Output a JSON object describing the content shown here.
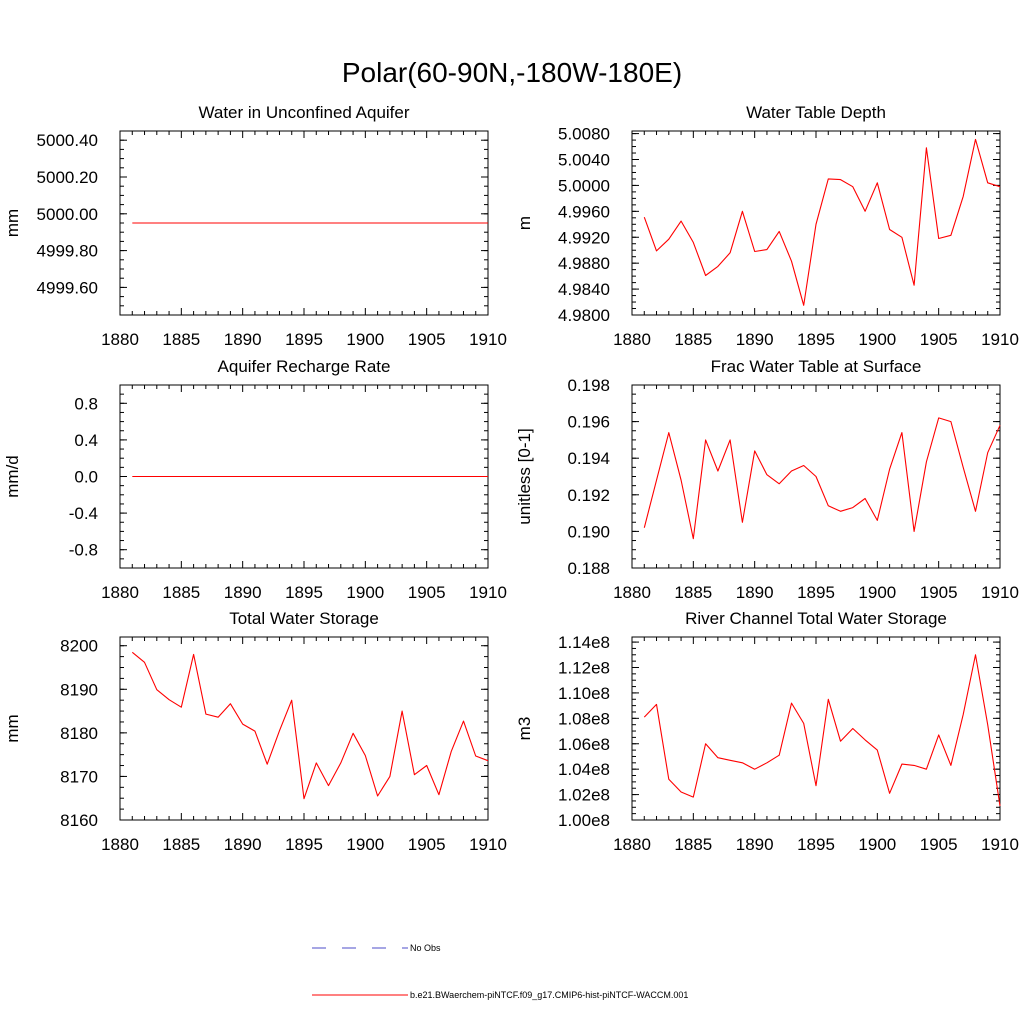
{
  "figure": {
    "title": "Polar(60-90N,-180W-180E)",
    "legend": [
      {
        "label": "No Obs",
        "color": "#4c4cc8",
        "style": "dashed"
      },
      {
        "label": "b.e21.BWaerchem-piNTCF.f09_g17.CMIP6-hist-piNTCF-WACCM.001",
        "color": "#ff0000",
        "style": "solid"
      }
    ]
  },
  "chart_data": [
    {
      "type": "line",
      "title": "Water in Unconfined Aquifer",
      "ylabel": "mm",
      "xlim": [
        1880,
        1910
      ],
      "ylim": [
        4999.45,
        5000.45
      ],
      "xticks": [
        1880,
        1885,
        1890,
        1895,
        1900,
        1905,
        1910
      ],
      "yticks": [
        4999.6,
        4999.8,
        5000.0,
        5000.2,
        5000.4
      ],
      "ytick_labels": [
        "4999.60",
        "4999.80",
        "5000.00",
        "5000.20",
        "5000.40"
      ],
      "series": [
        {
          "color": "#ff0000",
          "x": [
            1881,
            1882,
            1883,
            1884,
            1885,
            1886,
            1887,
            1888,
            1889,
            1890,
            1891,
            1892,
            1893,
            1894,
            1895,
            1896,
            1897,
            1898,
            1899,
            1900,
            1901,
            1902,
            1903,
            1904,
            1905,
            1906,
            1907,
            1908,
            1909,
            1910
          ],
          "y": [
            4999.95,
            4999.95,
            4999.95,
            4999.95,
            4999.95,
            4999.95,
            4999.95,
            4999.95,
            4999.95,
            4999.95,
            4999.95,
            4999.95,
            4999.95,
            4999.95,
            4999.95,
            4999.95,
            4999.95,
            4999.95,
            4999.95,
            4999.95,
            4999.95,
            4999.95,
            4999.95,
            4999.95,
            4999.95,
            4999.95,
            4999.95,
            4999.95,
            4999.95,
            4999.95
          ]
        }
      ]
    },
    {
      "type": "line",
      "title": "Water Table Depth",
      "ylabel": "m",
      "xlim": [
        1880,
        1910
      ],
      "ylim": [
        4.98,
        5.0084
      ],
      "xticks": [
        1880,
        1885,
        1890,
        1895,
        1900,
        1905,
        1910
      ],
      "yticks": [
        4.98,
        4.984,
        4.988,
        4.992,
        4.996,
        5.0,
        5.004,
        5.008
      ],
      "ytick_labels": [
        "4.9800",
        "4.9840",
        "4.9880",
        "4.9920",
        "4.9960",
        "5.0000",
        "5.0040",
        "5.0080"
      ],
      "series": [
        {
          "color": "#ff0000",
          "x": [
            1881,
            1882,
            1883,
            1884,
            1885,
            1886,
            1887,
            1888,
            1889,
            1890,
            1891,
            1892,
            1893,
            1894,
            1895,
            1896,
            1897,
            1898,
            1899,
            1900,
            1901,
            1902,
            1903,
            1904,
            1905,
            1906,
            1907,
            1908,
            1909,
            1910
          ],
          "y": [
            4.9951,
            4.9899,
            4.9917,
            4.9945,
            4.9912,
            4.9861,
            4.9875,
            4.9896,
            4.996,
            4.9898,
            4.9901,
            4.9929,
            4.9883,
            4.9815,
            4.994,
            5.001,
            5.0009,
            4.9998,
            4.996,
            5.0004,
            4.9932,
            4.992,
            4.9846,
            5.0058,
            4.9918,
            4.9923,
            4.9983,
            5.0071,
            5.0004,
            4.9998
          ]
        }
      ]
    },
    {
      "type": "line",
      "title": "Aquifer Recharge Rate",
      "ylabel": "mm/d",
      "xlim": [
        1880,
        1910
      ],
      "ylim": [
        -1.0,
        1.0
      ],
      "xticks": [
        1880,
        1885,
        1890,
        1895,
        1900,
        1905,
        1910
      ],
      "yticks": [
        -0.8,
        -0.4,
        0.0,
        0.4,
        0.8
      ],
      "ytick_labels": [
        "-0.8",
        "-0.4",
        "0.0",
        "0.4",
        "0.8"
      ],
      "series": [
        {
          "color": "#ff0000",
          "x": [
            1881,
            1882,
            1883,
            1884,
            1885,
            1886,
            1887,
            1888,
            1889,
            1890,
            1891,
            1892,
            1893,
            1894,
            1895,
            1896,
            1897,
            1898,
            1899,
            1900,
            1901,
            1902,
            1903,
            1904,
            1905,
            1906,
            1907,
            1908,
            1909,
            1910
          ],
          "y": [
            0,
            0,
            0,
            0,
            0,
            0,
            0,
            0,
            0,
            0,
            0,
            0,
            0,
            0,
            0,
            0,
            0,
            0,
            0,
            0,
            0,
            0,
            0,
            0,
            0,
            0,
            0,
            0,
            0,
            0
          ]
        }
      ]
    },
    {
      "type": "line",
      "title": "Frac Water Table at Surface",
      "ylabel": "unitless [0-1]",
      "xlim": [
        1880,
        1910
      ],
      "ylim": [
        0.188,
        0.198
      ],
      "xticks": [
        1880,
        1885,
        1890,
        1895,
        1900,
        1905,
        1910
      ],
      "yticks": [
        0.188,
        0.19,
        0.192,
        0.194,
        0.196,
        0.198
      ],
      "ytick_labels": [
        "0.188",
        "0.190",
        "0.192",
        "0.194",
        "0.196",
        "0.198"
      ],
      "series": [
        {
          "color": "#ff0000",
          "x": [
            1881,
            1882,
            1883,
            1884,
            1885,
            1886,
            1887,
            1888,
            1889,
            1890,
            1891,
            1892,
            1893,
            1894,
            1895,
            1896,
            1897,
            1898,
            1899,
            1900,
            1901,
            1902,
            1903,
            1904,
            1905,
            1906,
            1907,
            1908,
            1909,
            1910
          ],
          "y": [
            0.1902,
            0.1928,
            0.1954,
            0.1928,
            0.1896,
            0.195,
            0.1933,
            0.195,
            0.1905,
            0.1944,
            0.1931,
            0.1926,
            0.1933,
            0.1936,
            0.193,
            0.1914,
            0.1911,
            0.1913,
            0.1918,
            0.1906,
            0.1934,
            0.1954,
            0.19,
            0.1938,
            0.1962,
            0.196,
            0.1935,
            0.1911,
            0.1943,
            0.1958
          ]
        }
      ]
    },
    {
      "type": "line",
      "title": "Total Water Storage",
      "ylabel": "mm",
      "xlim": [
        1880,
        1910
      ],
      "ylim": [
        8160,
        8202
      ],
      "xticks": [
        1880,
        1885,
        1890,
        1895,
        1900,
        1905,
        1910
      ],
      "yticks": [
        8160,
        8170,
        8180,
        8190,
        8200
      ],
      "ytick_labels": [
        "8160",
        "8170",
        "8180",
        "8190",
        "8200"
      ],
      "series": [
        {
          "color": "#ff0000",
          "x": [
            1881,
            1882,
            1883,
            1884,
            1885,
            1886,
            1887,
            1888,
            1889,
            1890,
            1891,
            1892,
            1893,
            1894,
            1895,
            1896,
            1897,
            1898,
            1899,
            1900,
            1901,
            1902,
            1903,
            1904,
            1905,
            1906,
            1907,
            1908,
            1909,
            1910
          ],
          "y": [
            8198.5,
            8196.2,
            8189.9,
            8187.6,
            8185.9,
            8198.0,
            8184.3,
            8183.6,
            8186.7,
            8182.0,
            8180.4,
            8172.8,
            8180.5,
            8187.5,
            8164.9,
            8173.1,
            8167.9,
            8173.1,
            8179.9,
            8174.8,
            8165.5,
            8170.0,
            8185.0,
            8170.4,
            8172.5,
            8165.8,
            8175.7,
            8182.7,
            8174.7,
            8173.6
          ]
        }
      ]
    },
    {
      "type": "line",
      "title": "River Channel Total Water Storage",
      "ylabel": "m3",
      "xlim": [
        1880,
        1910
      ],
      "ylim": [
        100000000,
        114400000
      ],
      "xticks": [
        1880,
        1885,
        1890,
        1895,
        1900,
        1905,
        1910
      ],
      "yticks": [
        100000000,
        102000000,
        104000000,
        106000000,
        108000000,
        110000000,
        112000000,
        114000000
      ],
      "ytick_labels": [
        "1.00e8",
        "1.02e8",
        "1.04e8",
        "1.06e8",
        "1.08e8",
        "1.10e8",
        "1.12e8",
        "1.14e8"
      ],
      "series": [
        {
          "color": "#ff0000",
          "x": [
            1881,
            1882,
            1883,
            1884,
            1885,
            1886,
            1887,
            1888,
            1889,
            1890,
            1891,
            1892,
            1893,
            1894,
            1895,
            1896,
            1897,
            1898,
            1899,
            1900,
            1901,
            1902,
            1903,
            1904,
            1905,
            1906,
            1907,
            1908,
            1909,
            1910
          ],
          "y": [
            108100000,
            109100000,
            103200000,
            102200000,
            101800000,
            106000000,
            104900000,
            104700000,
            104500000,
            104000000,
            104500000,
            105100000,
            109200000,
            107600000,
            102700000,
            109500000,
            106200000,
            107200000,
            106300000,
            105500000,
            102100000,
            104400000,
            104300000,
            104000000,
            106700000,
            104300000,
            108300000,
            113000000,
            107500000,
            101100000
          ]
        }
      ]
    }
  ]
}
